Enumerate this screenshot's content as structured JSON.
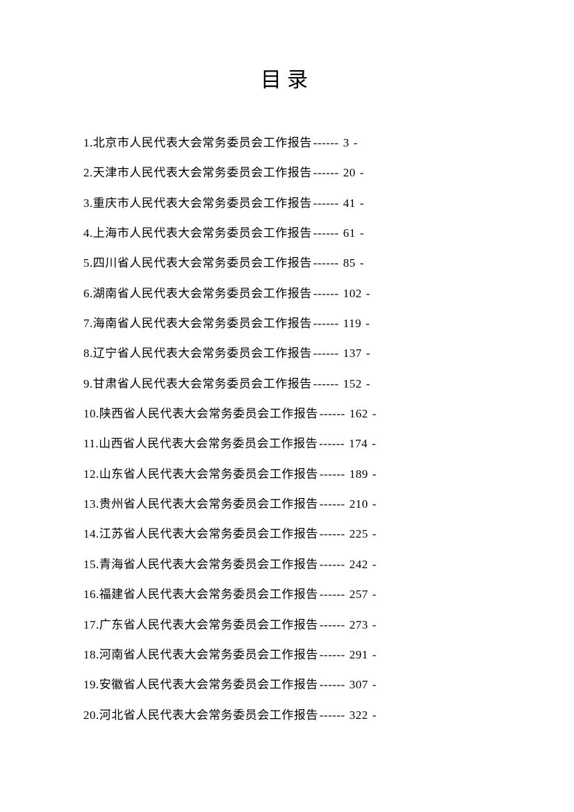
{
  "title": "目录",
  "dashes": "------",
  "trail": "-",
  "entries": [
    {
      "num": "1.",
      "label": "北京市人民代表大会常务委员会工作报告",
      "page": "3"
    },
    {
      "num": "2.",
      "label": "天津市人民代表大会常务委员会工作报告",
      "page": "20"
    },
    {
      "num": "3.",
      "label": "重庆市人民代表大会常务委员会工作报告",
      "page": "41"
    },
    {
      "num": "4.",
      "label": "上海市人民代表大会常务委员会工作报告",
      "page": "61"
    },
    {
      "num": "5.",
      "label": "四川省人民代表大会常务委员会工作报告",
      "page": "85"
    },
    {
      "num": "6.",
      "label": "湖南省人民代表大会常务委员会工作报告",
      "page": "102"
    },
    {
      "num": "7.",
      "label": "海南省人民代表大会常务委员会工作报告",
      "page": "119"
    },
    {
      "num": "8.",
      "label": "辽宁省人民代表大会常务委员会工作报告",
      "page": "137"
    },
    {
      "num": "9.",
      "label": "甘肃省人民代表大会常务委员会工作报告",
      "page": "152"
    },
    {
      "num": "10.",
      "label": "陕西省人民代表大会常务委员会工作报告",
      "page": "162"
    },
    {
      "num": "11.",
      "label": "山西省人民代表大会常务委员会工作报告",
      "page": "174"
    },
    {
      "num": "12.",
      "label": "山东省人民代表大会常务委员会工作报告",
      "page": "189"
    },
    {
      "num": "13.",
      "label": "贵州省人民代表大会常务委员会工作报告",
      "page": "210"
    },
    {
      "num": "14.",
      "label": "江苏省人民代表大会常务委员会工作报告",
      "page": "225"
    },
    {
      "num": "15.",
      "label": "青海省人民代表大会常务委员会工作报告",
      "page": "242"
    },
    {
      "num": "16.",
      "label": "福建省人民代表大会常务委员会工作报告",
      "page": "257"
    },
    {
      "num": "17.",
      "label": "广东省人民代表大会常务委员会工作报告",
      "page": "273"
    },
    {
      "num": "18.",
      "label": "河南省人民代表大会常务委员会工作报告",
      "page": "291"
    },
    {
      "num": "19.",
      "label": "安徽省人民代表大会常务委员会工作报告",
      "page": "307"
    },
    {
      "num": "20.",
      "label": "河北省人民代表大会常务委员会工作报告",
      "page": "322"
    }
  ]
}
